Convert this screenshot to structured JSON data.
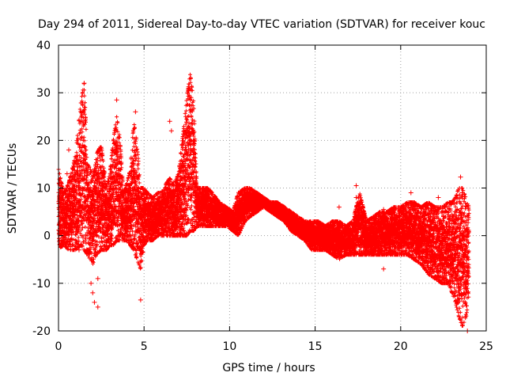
{
  "chart_data": {
    "type": "scatter",
    "title": "Day 294 of 2011, Sidereal Day-to-day VTEC variation (SDTVAR) for receiver kouc",
    "xlabel": "GPS time / hours",
    "ylabel": "SDTVAR / TECUs",
    "xlim": [
      0,
      25
    ],
    "ylim": [
      -20,
      40
    ],
    "xticks": [
      0,
      5,
      10,
      15,
      20,
      25
    ],
    "yticks": [
      -20,
      -10,
      0,
      10,
      20,
      30,
      40
    ],
    "grid": true,
    "marker": "+",
    "color": "#ff0000",
    "series": [
      {
        "name": "SDTVAR",
        "envelope_x": [
          0.0,
          0.3,
          0.6,
          1.0,
          1.3,
          1.5,
          1.7,
          2.0,
          2.2,
          2.5,
          2.8,
          3.0,
          3.2,
          3.4,
          3.6,
          3.8,
          4.0,
          4.2,
          4.4,
          4.6,
          4.8,
          5.0,
          5.2,
          5.5,
          5.8,
          6.0,
          6.3,
          6.5,
          6.8,
          7.0,
          7.3,
          7.5,
          7.7,
          7.9,
          8.1,
          8.4,
          8.7,
          9.0,
          9.4,
          9.8,
          10.2,
          10.5,
          10.9,
          11.2,
          11.6,
          12.0,
          12.4,
          12.8,
          13.2,
          13.6,
          14.0,
          14.4,
          14.8,
          15.2,
          15.6,
          16.0,
          16.4,
          16.8,
          17.2,
          17.6,
          18.0,
          18.4,
          18.8,
          19.2,
          19.6,
          20.0,
          20.4,
          20.8,
          21.2,
          21.6,
          22.0,
          22.4,
          22.8,
          23.0,
          23.2,
          23.4,
          23.6,
          23.8,
          24.0
        ],
        "envelope_max": [
          14,
          9,
          11,
          17,
          28,
          32,
          15,
          13,
          17,
          19,
          10,
          13,
          20,
          25,
          20,
          9,
          11,
          14,
          24,
          19,
          10,
          10,
          9,
          8,
          9,
          9,
          11,
          12,
          11,
          13,
          22,
          29,
          34,
          28,
          10,
          10,
          10,
          9,
          7,
          6,
          5,
          9,
          10,
          10,
          9,
          8,
          7,
          7,
          6,
          5,
          4,
          3,
          3,
          3,
          2,
          3,
          3,
          2,
          3,
          9,
          3,
          4,
          5,
          5,
          6,
          6,
          7,
          7,
          6,
          7,
          6,
          6,
          7,
          7,
          8,
          10,
          10,
          8,
          6
        ],
        "envelope_min": [
          -3,
          -2,
          -3,
          -3,
          -2,
          -3,
          -4,
          -6,
          -4,
          -3,
          -3,
          -2,
          -2,
          -1,
          -1,
          -1,
          -1,
          -2,
          -3,
          -5,
          -7,
          -2,
          -1,
          -1,
          0,
          0,
          0,
          0,
          0,
          0,
          0,
          0,
          1,
          1,
          2,
          2,
          2,
          2,
          2,
          2,
          1,
          0,
          3,
          4,
          5,
          6,
          5,
          4,
          3,
          1,
          0,
          -1,
          -3,
          -3,
          -3,
          -4,
          -5,
          -4,
          -4,
          -4,
          -4,
          -4,
          -4,
          -4,
          -4,
          -4,
          -4,
          -5,
          -6,
          -8,
          -9,
          -10,
          -10,
          -12,
          -14,
          -17,
          -19,
          -18,
          -12
        ],
        "outliers": [
          [
            0.5,
            13
          ],
          [
            0.6,
            18
          ],
          [
            0.7,
            11
          ],
          [
            1.2,
            -3
          ],
          [
            1.4,
            19
          ],
          [
            1.5,
            32
          ],
          [
            1.9,
            -10
          ],
          [
            2.0,
            -12
          ],
          [
            2.1,
            -14
          ],
          [
            2.3,
            -15
          ],
          [
            2.3,
            -9
          ],
          [
            3.4,
            28.5
          ],
          [
            4.5,
            26
          ],
          [
            4.8,
            -13.5
          ],
          [
            6.5,
            24
          ],
          [
            6.6,
            22
          ],
          [
            10.3,
            6
          ],
          [
            10.4,
            2
          ],
          [
            16.4,
            6
          ],
          [
            17.4,
            10.5
          ],
          [
            17.4,
            8
          ],
          [
            19.0,
            -7
          ],
          [
            19.0,
            5.5
          ],
          [
            20.6,
            9
          ],
          [
            22.2,
            8
          ],
          [
            23.5,
            12.3
          ],
          [
            23.6,
            9
          ],
          [
            23.9,
            -20
          ]
        ]
      }
    ]
  }
}
